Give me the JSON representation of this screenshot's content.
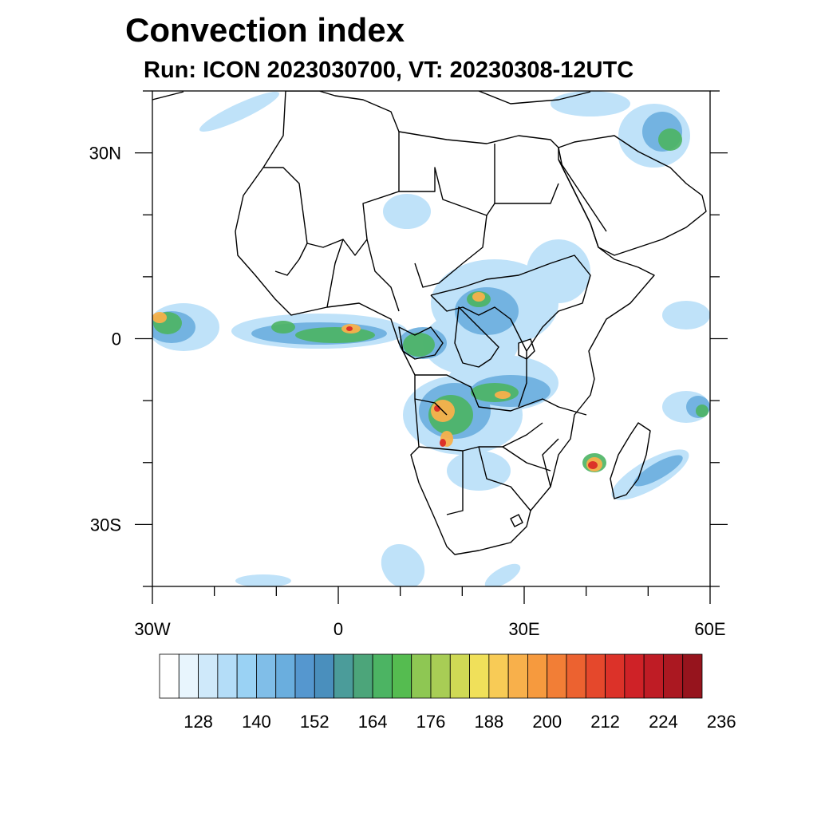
{
  "title": "Convection index",
  "subtitle": "Run: ICON 2023030700,  VT: 20230308-12UTC",
  "map": {
    "lon_range": [
      -30,
      60
    ],
    "lat_range": [
      -40,
      40
    ],
    "lon_ticks": [
      {
        "value": -30,
        "label": "30W"
      },
      {
        "value": 0,
        "label": "0"
      },
      {
        "value": 30,
        "label": "30E"
      },
      {
        "value": 60,
        "label": "60E"
      }
    ],
    "lat_ticks": [
      {
        "value": 30,
        "label": "30N"
      },
      {
        "value": 0,
        "label": "0"
      },
      {
        "value": -30,
        "label": "30S"
      }
    ]
  },
  "colorbar": {
    "colors": [
      "#ffffff",
      "#e8f5fd",
      "#cfe9fa",
      "#b4ddf8",
      "#9ad2f4",
      "#80bee8",
      "#6aaede",
      "#5597cf",
      "#4a8fbd",
      "#4b9c9a",
      "#4ca57a",
      "#4cb463",
      "#55bc50",
      "#8ec753",
      "#a8cd55",
      "#cfd955",
      "#f0e05a",
      "#f8cb56",
      "#f8b04b",
      "#f69a3e",
      "#f27e36",
      "#ec6230",
      "#e5482c",
      "#dc3229",
      "#cf2227",
      "#bf1c25",
      "#ab1821",
      "#96141d"
    ],
    "labels": [
      "128",
      "140",
      "152",
      "164",
      "176",
      "188",
      "200",
      "212",
      "224",
      "236"
    ]
  },
  "colors": {
    "light_blue": "#b4ddf8",
    "mid_blue": "#6aaede",
    "green": "#4cb463",
    "yellow": "#f0e05a",
    "orange": "#f69a3e",
    "red": "#dc3229"
  }
}
